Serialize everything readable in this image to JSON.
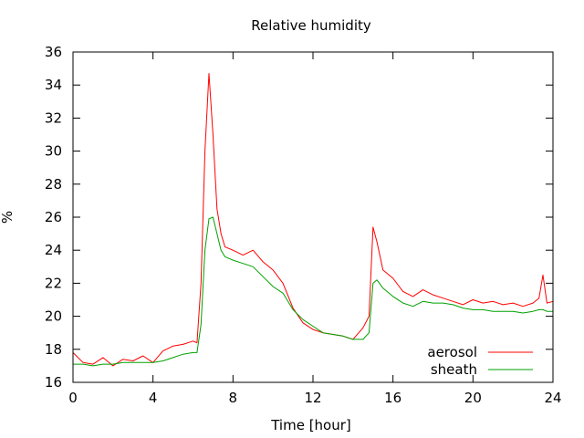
{
  "chart_data": {
    "type": "line",
    "title": "Relative humidity",
    "xlabel": "Time [hour]",
    "ylabel": "%",
    "xlim": [
      0,
      24
    ],
    "ylim": [
      16,
      36
    ],
    "x_ticks": [
      0,
      4,
      8,
      12,
      16,
      20,
      24
    ],
    "y_ticks": [
      16,
      18,
      20,
      22,
      24,
      26,
      28,
      30,
      32,
      34,
      36
    ],
    "grid": false,
    "legend_position": "bottom-right",
    "series": [
      {
        "name": "aerosol",
        "color": "#ff0000",
        "x": [
          0,
          0.5,
          1,
          1.5,
          2,
          2.5,
          3,
          3.5,
          4,
          4.5,
          5,
          5.5,
          6,
          6.2,
          6.4,
          6.6,
          6.8,
          7.0,
          7.2,
          7.4,
          7.6,
          8,
          8.5,
          9,
          9.5,
          10,
          10.5,
          11,
          11.5,
          12,
          12.5,
          13,
          13.5,
          14,
          14.5,
          14.8,
          15.0,
          15.2,
          15.5,
          16,
          16.5,
          17,
          17.5,
          18,
          18.5,
          19,
          19.5,
          20,
          20.5,
          21,
          21.5,
          22,
          22.5,
          23,
          23.3,
          23.5,
          23.7,
          24
        ],
        "y": [
          17.8,
          17.2,
          17.1,
          17.5,
          17.0,
          17.4,
          17.3,
          17.6,
          17.2,
          17.9,
          18.2,
          18.3,
          18.5,
          18.4,
          22.0,
          30.0,
          34.7,
          31.0,
          26.5,
          25.0,
          24.2,
          24.0,
          23.7,
          24.0,
          23.3,
          22.8,
          22.0,
          20.5,
          19.6,
          19.2,
          19.0,
          18.9,
          18.8,
          18.6,
          19.3,
          20.0,
          25.4,
          24.5,
          22.8,
          22.3,
          21.5,
          21.2,
          21.6,
          21.3,
          21.1,
          20.9,
          20.7,
          21.0,
          20.8,
          20.9,
          20.7,
          20.8,
          20.6,
          20.8,
          21.1,
          22.5,
          20.8,
          20.9
        ]
      },
      {
        "name": "sheath",
        "color": "#00a000",
        "x": [
          0,
          0.5,
          1,
          1.5,
          2,
          2.5,
          3,
          3.5,
          4,
          4.5,
          5,
          5.5,
          6,
          6.2,
          6.4,
          6.6,
          6.8,
          7.0,
          7.2,
          7.4,
          7.6,
          8,
          8.5,
          9,
          9.5,
          10,
          10.5,
          11,
          11.5,
          12,
          12.5,
          13,
          13.5,
          14,
          14.5,
          14.8,
          15.0,
          15.2,
          15.5,
          16,
          16.5,
          17,
          17.5,
          18,
          18.5,
          19,
          19.5,
          20,
          20.5,
          21,
          21.5,
          22,
          22.5,
          23,
          23.3,
          23.5,
          23.7,
          24
        ],
        "y": [
          17.1,
          17.1,
          17.0,
          17.1,
          17.1,
          17.2,
          17.2,
          17.2,
          17.2,
          17.3,
          17.5,
          17.7,
          17.8,
          17.8,
          19.5,
          24.0,
          25.9,
          26.0,
          25.0,
          24.0,
          23.6,
          23.4,
          23.2,
          23.0,
          22.4,
          21.8,
          21.4,
          20.4,
          19.8,
          19.4,
          19.0,
          18.9,
          18.8,
          18.6,
          18.6,
          19.0,
          22.0,
          22.2,
          21.7,
          21.2,
          20.8,
          20.6,
          20.9,
          20.8,
          20.8,
          20.7,
          20.5,
          20.4,
          20.4,
          20.3,
          20.3,
          20.3,
          20.2,
          20.3,
          20.4,
          20.4,
          20.3,
          20.3
        ]
      }
    ]
  }
}
